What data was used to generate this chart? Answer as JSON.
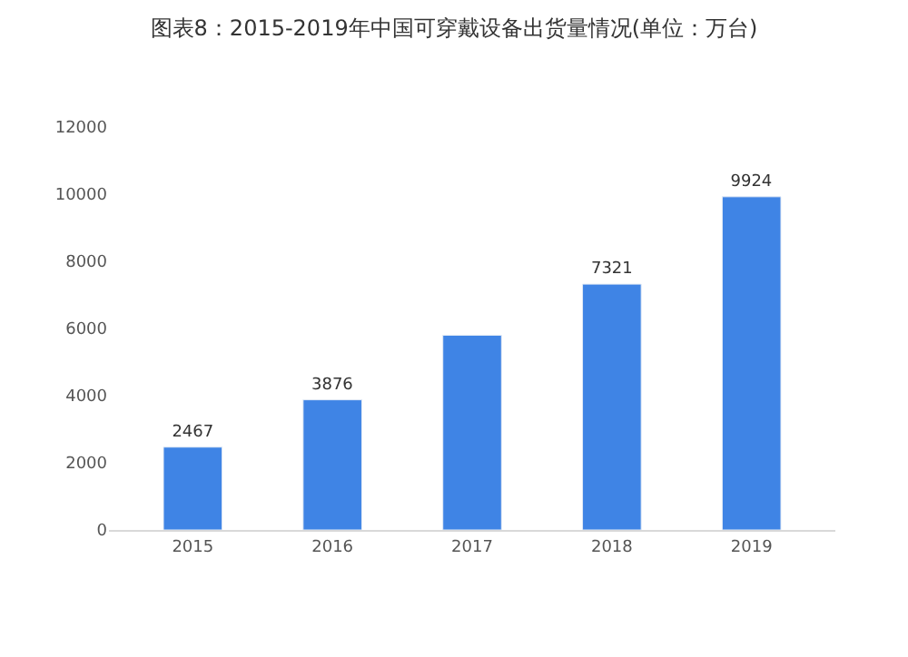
{
  "chart_data": {
    "type": "bar",
    "title": "图表8：2015-2019年中国可穿戴设备出货量情况(单位：万台)",
    "categories": [
      "2015",
      "2016",
      "2017",
      "2018",
      "2019"
    ],
    "values": [
      2467,
      3876,
      5800,
      7321,
      9924
    ],
    "value_labels": [
      "2467",
      "3876",
      null,
      "7321",
      "9924"
    ],
    "color": "#3f84e5",
    "ylim": [
      0,
      12000
    ],
    "yticks": [
      0,
      2000,
      4000,
      6000,
      8000,
      10000,
      12000
    ],
    "grid": false,
    "legend": false
  }
}
